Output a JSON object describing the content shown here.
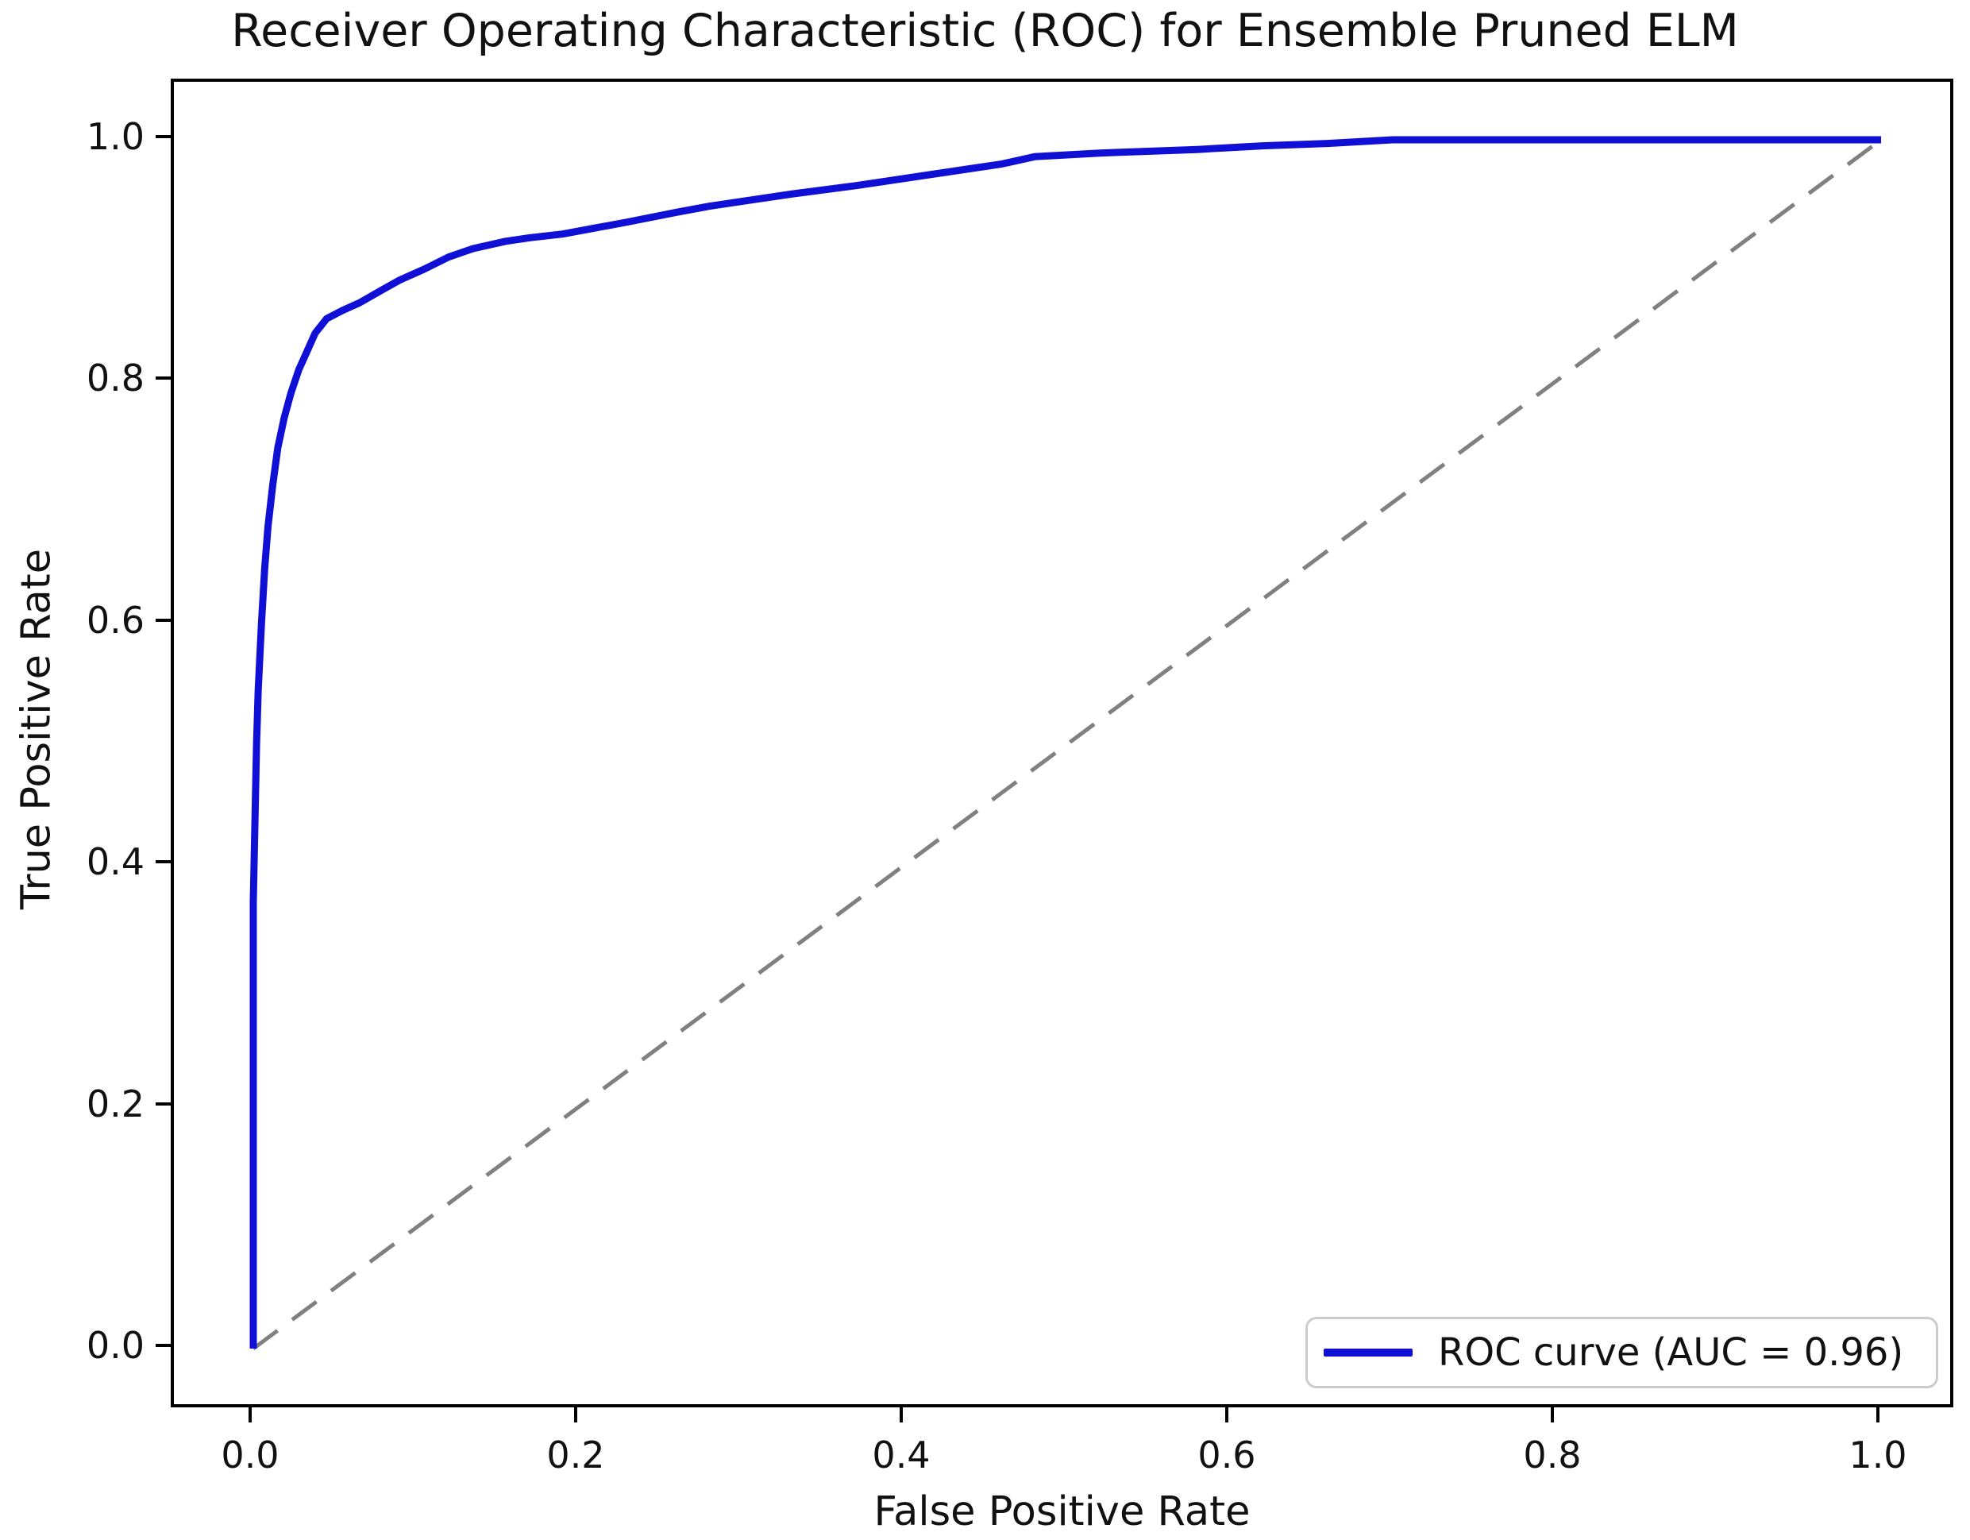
{
  "title": "Receiver Operating Characteristic (ROC) for Ensemble Pruned ELM",
  "chart_data": {
    "type": "line",
    "title": "Receiver Operating Characteristic (ROC) for Ensemble Pruned ELM",
    "xlabel": "False Positive Rate",
    "ylabel": "True Positive Rate",
    "xlim": [
      -0.05,
      1.05
    ],
    "ylim": [
      -0.05,
      1.05
    ],
    "xticks": [
      0.0,
      0.2,
      0.4,
      0.6,
      0.8,
      1.0
    ],
    "yticks": [
      0.0,
      0.2,
      0.4,
      0.6,
      0.8,
      1.0
    ],
    "xtick_labels": [
      "0.0",
      "0.2",
      "0.4",
      "0.6",
      "0.8",
      "1.0"
    ],
    "ytick_labels": [
      "0.0",
      "0.2",
      "0.4",
      "0.6",
      "0.8",
      "1.0"
    ],
    "grid": false,
    "legend_position": "lower right",
    "auc": 0.96,
    "series": [
      {
        "name": "ROC curve (AUC = 0.96)",
        "color": "#0f0fd6",
        "style": "solid",
        "line_width": 9,
        "points": [
          [
            0.0,
            0.0
          ],
          [
            0.0,
            0.37
          ],
          [
            0.002,
            0.5
          ],
          [
            0.003,
            0.545
          ],
          [
            0.005,
            0.6
          ],
          [
            0.007,
            0.645
          ],
          [
            0.009,
            0.68
          ],
          [
            0.012,
            0.715
          ],
          [
            0.015,
            0.745
          ],
          [
            0.019,
            0.77
          ],
          [
            0.023,
            0.79
          ],
          [
            0.028,
            0.81
          ],
          [
            0.033,
            0.825
          ],
          [
            0.038,
            0.84
          ],
          [
            0.045,
            0.852
          ],
          [
            0.055,
            0.859
          ],
          [
            0.065,
            0.865
          ],
          [
            0.078,
            0.875
          ],
          [
            0.09,
            0.884
          ],
          [
            0.105,
            0.893
          ],
          [
            0.12,
            0.903
          ],
          [
            0.135,
            0.91
          ],
          [
            0.155,
            0.916
          ],
          [
            0.17,
            0.919
          ],
          [
            0.19,
            0.922
          ],
          [
            0.21,
            0.927
          ],
          [
            0.23,
            0.932
          ],
          [
            0.26,
            0.94
          ],
          [
            0.28,
            0.945
          ],
          [
            0.31,
            0.951
          ],
          [
            0.33,
            0.955
          ],
          [
            0.37,
            0.962
          ],
          [
            0.4,
            0.968
          ],
          [
            0.44,
            0.976
          ],
          [
            0.46,
            0.98
          ],
          [
            0.48,
            0.986
          ],
          [
            0.52,
            0.989
          ],
          [
            0.58,
            0.992
          ],
          [
            0.62,
            0.995
          ],
          [
            0.66,
            0.997
          ],
          [
            0.7,
            1.0
          ],
          [
            1.0,
            1.0
          ]
        ]
      },
      {
        "name": "chance-diagonal",
        "color": "#808080",
        "style": "dashed",
        "line_width": 5,
        "points": [
          [
            0.0,
            0.0
          ],
          [
            1.0,
            1.0
          ]
        ]
      }
    ]
  },
  "legend": {
    "label": "ROC curve (AUC = 0.96)"
  }
}
